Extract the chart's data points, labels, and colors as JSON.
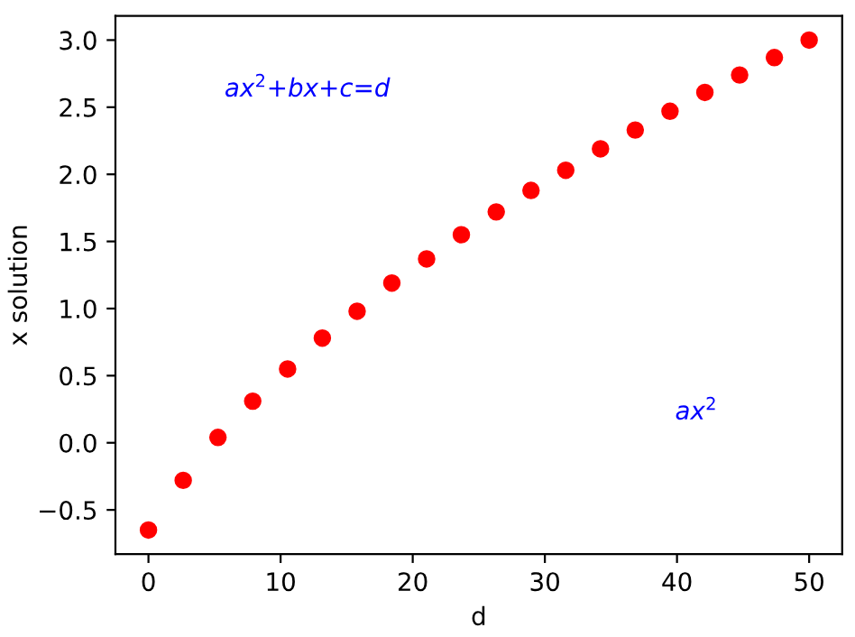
{
  "chart_data": {
    "type": "scatter",
    "xlabel": "d",
    "ylabel": "x solution",
    "x": [
      0,
      2.63,
      5.26,
      7.89,
      10.53,
      13.16,
      15.79,
      18.42,
      21.05,
      23.68,
      26.32,
      28.95,
      31.58,
      34.21,
      36.84,
      39.47,
      42.11,
      44.74,
      47.37,
      50
    ],
    "series": [
      {
        "color": "#ff0000",
        "values": [
          -0.65,
          -0.28,
          0.04,
          0.31,
          0.55,
          0.78,
          0.98,
          1.19,
          1.37,
          1.55,
          1.72,
          1.88,
          2.03,
          2.19,
          2.33,
          2.47,
          2.61,
          2.74,
          2.87,
          3.0
        ]
      }
    ],
    "marker": "circle",
    "xlim": [
      -2.5,
      52.5
    ],
    "xticks": [
      0,
      10,
      20,
      30,
      40,
      50
    ],
    "ylim": [
      -0.83,
      3.18
    ],
    "yticks": [
      {
        "value": -0.5,
        "label": "−0.5"
      },
      {
        "value": 0,
        "label": "0.0"
      },
      {
        "value": 0.5,
        "label": "0.5"
      },
      {
        "value": 1,
        "label": "1.0"
      },
      {
        "value": 1.5,
        "label": "1.5"
      },
      {
        "value": 2,
        "label": "2.0"
      },
      {
        "value": 2.5,
        "label": "2.5"
      },
      {
        "value": 3,
        "label": "3.0"
      }
    ],
    "annotations": [
      "ax$^{2}$+bx+c=d",
      "ax$^{2}$"
    ],
    "grid": false
  }
}
